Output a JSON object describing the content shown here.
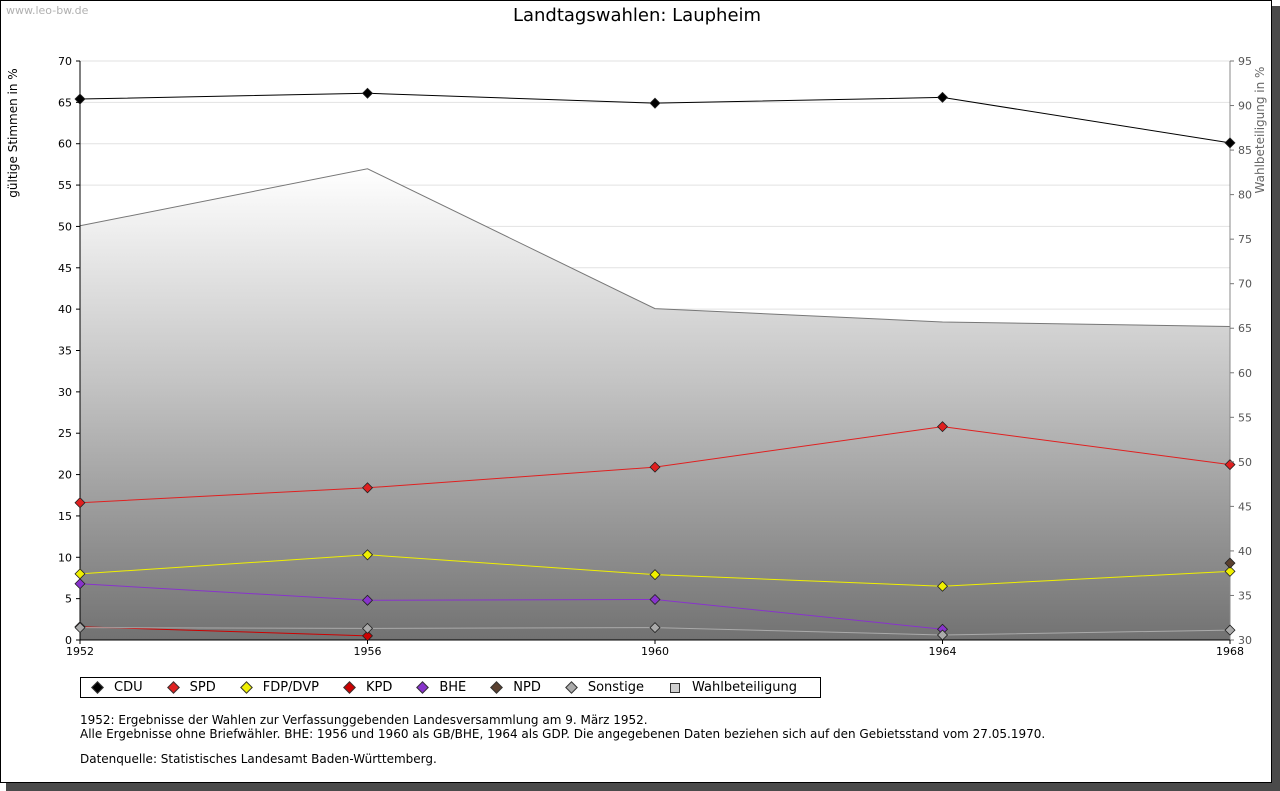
{
  "watermark": "www.leo-bw.de",
  "chart_data": {
    "type": "line",
    "title": "Landtagswahlen: Laupheim",
    "ylabel": "gültige Stimmen in %",
    "y2label": "Wahlbeteiligung in %",
    "x": [
      1952,
      1956,
      1960,
      1964,
      1968
    ],
    "x_ticks": [
      "1952",
      "1956",
      "1960",
      "1964",
      "1968"
    ],
    "ylim": [
      0,
      70
    ],
    "y_ticks": [
      0,
      5,
      10,
      15,
      20,
      25,
      30,
      35,
      40,
      45,
      50,
      55,
      60,
      65,
      70
    ],
    "y2lim": [
      30,
      95
    ],
    "y2_ticks": [
      30,
      35,
      40,
      45,
      50,
      55,
      60,
      65,
      70,
      75,
      80,
      85,
      90,
      95
    ],
    "grid": true,
    "series": [
      {
        "name": "CDU",
        "color": "#000000",
        "values": [
          65.4,
          66.1,
          64.9,
          65.6,
          60.1
        ]
      },
      {
        "name": "SPD",
        "color": "#e02020",
        "values": [
          16.6,
          18.4,
          20.9,
          25.8,
          21.2
        ]
      },
      {
        "name": "FDP/DVP",
        "color": "#f0f000",
        "values": [
          8.0,
          10.3,
          7.9,
          6.5,
          8.3
        ]
      },
      {
        "name": "KPD",
        "color": "#cc0000",
        "values": [
          1.6,
          0.5,
          null,
          null,
          null
        ]
      },
      {
        "name": "BHE",
        "color": "#8833cc",
        "values": [
          6.8,
          4.8,
          4.9,
          1.3,
          null
        ]
      },
      {
        "name": "NPD",
        "color": "#5a4030",
        "values": [
          null,
          null,
          null,
          null,
          9.3
        ]
      },
      {
        "name": "Sonstige",
        "color": "#aaaaaa",
        "values": [
          1.5,
          1.4,
          1.5,
          0.6,
          1.2
        ]
      }
    ],
    "area": {
      "name": "Wahlbeteiligung",
      "axis": "right",
      "values": [
        76.5,
        82.9,
        67.2,
        65.7,
        65.2
      ]
    }
  },
  "legend": [
    {
      "label": "CDU",
      "color": "#000000",
      "shape": "diamond"
    },
    {
      "label": "SPD",
      "color": "#e02020",
      "shape": "diamond"
    },
    {
      "label": "FDP/DVP",
      "color": "#f0f000",
      "shape": "diamond"
    },
    {
      "label": "KPD",
      "color": "#cc0000",
      "shape": "diamond"
    },
    {
      "label": "BHE",
      "color": "#8833cc",
      "shape": "diamond"
    },
    {
      "label": "NPD",
      "color": "#5a4030",
      "shape": "diamond"
    },
    {
      "label": "Sonstige",
      "color": "#aaaaaa",
      "shape": "diamond"
    },
    {
      "label": "Wahlbeteiligung",
      "color": "#cfcfcf",
      "shape": "square"
    }
  ],
  "notes": [
    "1952: Ergebnisse der Wahlen zur Verfassunggebenden Landesversammlung am 9. März 1952.",
    "Alle Ergebnisse ohne Briefwähler. BHE: 1956 und 1960 als GB/BHE, 1964 als GDP. Die angegebenen Daten beziehen sich auf den Gebietsstand vom 27.05.1970."
  ],
  "source": "Datenquelle: Statistisches Landesamt Baden-Württemberg."
}
